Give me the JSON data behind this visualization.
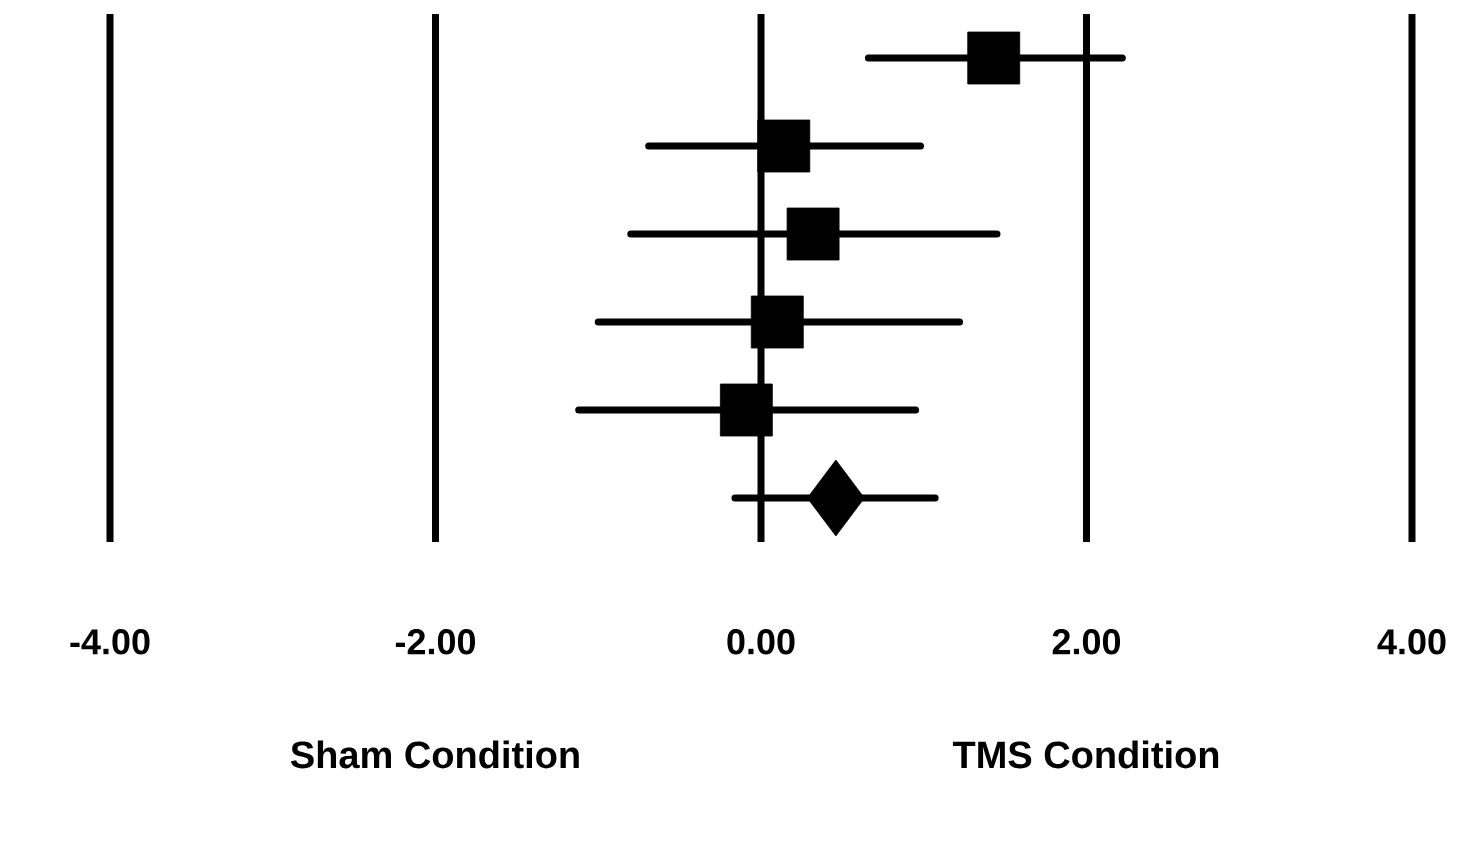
{
  "chart_data": {
    "type": "scatter",
    "orientation": "horizontal",
    "categories": [
      null,
      null,
      null,
      null,
      null,
      null
    ],
    "series": [
      {
        "marker": "square",
        "color": "#000000",
        "values": [
          1.43,
          0.14,
          0.32,
          0.1,
          -0.09,
          null
        ],
        "errors": [
          [
            0.66,
            2.22
          ],
          [
            -0.69,
            0.98
          ],
          [
            -0.8,
            1.45
          ],
          [
            -1.0,
            1.22
          ],
          [
            -1.12,
            0.95
          ],
          null
        ]
      },
      {
        "marker": "diamond",
        "color": "#000000",
        "values": [
          null,
          null,
          null,
          null,
          null,
          0.46
        ],
        "errors": [
          null,
          null,
          null,
          null,
          null,
          [
            -0.16,
            1.07
          ]
        ]
      }
    ],
    "xlim": [
      -4,
      4
    ],
    "xticks": [
      {
        "value": -4,
        "label": "-4.00"
      },
      {
        "value": -2,
        "label": "-2.00"
      },
      {
        "value": 0,
        "label": "0.00"
      },
      {
        "value": 2,
        "label": "2.00"
      },
      {
        "value": 4,
        "label": "4.00"
      }
    ],
    "grid": "x",
    "annotations": [
      "Sham Condition",
      "TMS Condition"
    ]
  }
}
